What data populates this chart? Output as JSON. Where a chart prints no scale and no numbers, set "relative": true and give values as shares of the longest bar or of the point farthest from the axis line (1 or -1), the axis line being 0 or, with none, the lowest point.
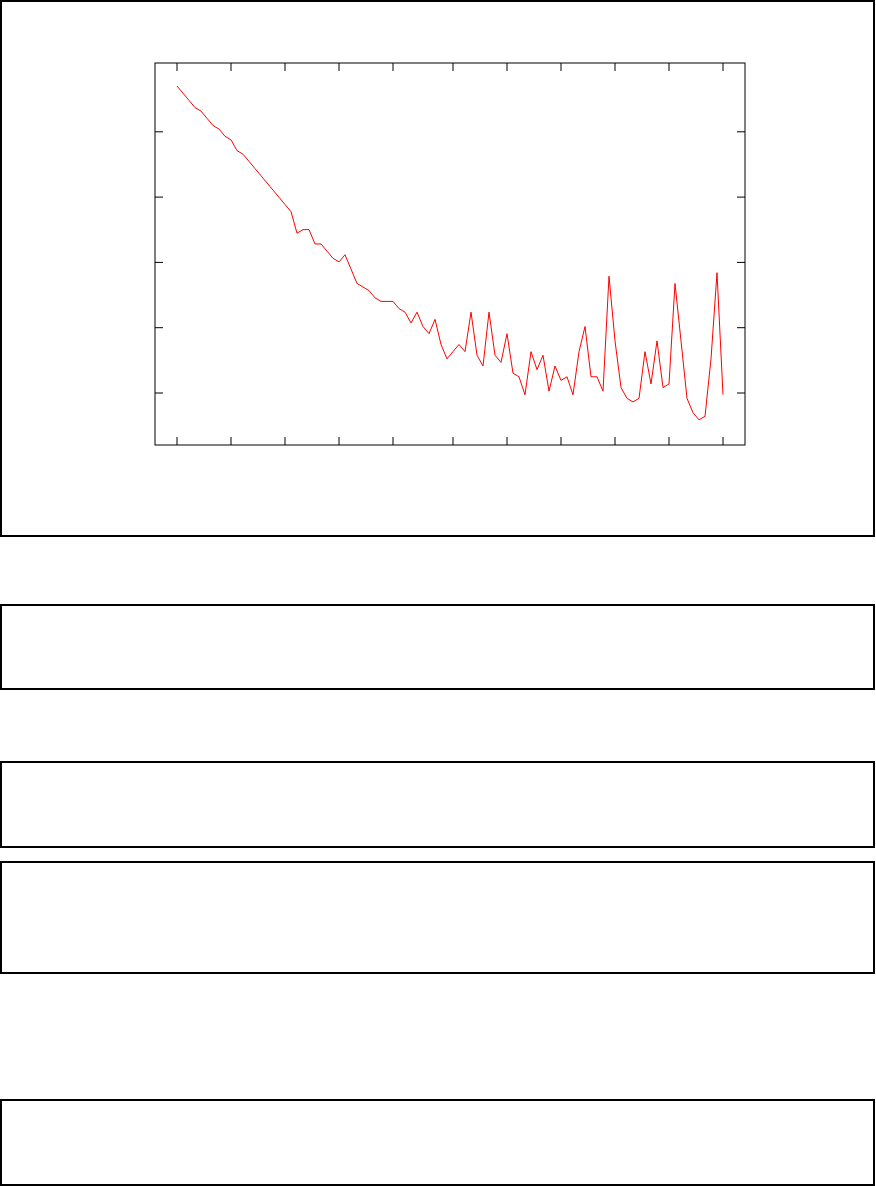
{
  "chart_data": {
    "type": "line",
    "relative": true,
    "marker": "none",
    "line_style": "solid",
    "categories": [
      null,
      null,
      null,
      null,
      null,
      null,
      null,
      null,
      null,
      null,
      null,
      null,
      null,
      null,
      null,
      null,
      null,
      null,
      null,
      null,
      null,
      null,
      null,
      null,
      null,
      null,
      null,
      null,
      null,
      null,
      null,
      null,
      null,
      null,
      null,
      null,
      null,
      null,
      null,
      null,
      null,
      null,
      null,
      null,
      null,
      null,
      null,
      null,
      null,
      null,
      null,
      null,
      null,
      null,
      null,
      null,
      null,
      null,
      null,
      null,
      null,
      null,
      null,
      null,
      null,
      null,
      null,
      null,
      null,
      null,
      null,
      null,
      null,
      null,
      null,
      null,
      null,
      null,
      null,
      null,
      null,
      null,
      null,
      null,
      null,
      null,
      null,
      null,
      null,
      null,
      null,
      null
    ],
    "series": [
      {
        "color": "#ff0000",
        "values": [
          1,
          0.98,
          0.96,
          0.94,
          0.93,
          0.91,
          0.89,
          0.88,
          0.86,
          0.85,
          0.82,
          0.81,
          0.79,
          0.77,
          0.75,
          0.73,
          0.71,
          0.69,
          0.67,
          0.65,
          0.59,
          0.6,
          0.6,
          0.56,
          0.56,
          0.54,
          0.52,
          0.51,
          0.53,
          0.49,
          0.45,
          0.44,
          0.43,
          0.41,
          0.4,
          0.4,
          0.4,
          0.38,
          0.37,
          0.34,
          0.37,
          0.33,
          0.31,
          0.35,
          0.28,
          0.24,
          0.26,
          0.28,
          0.26,
          0.37,
          0.25,
          0.22,
          0.37,
          0.25,
          0.23,
          0.31,
          0.2,
          0.19,
          0.14,
          0.26,
          0.21,
          0.25,
          0.15,
          0.22,
          0.18,
          0.19,
          0.14,
          0.26,
          0.33,
          0.19,
          0.19,
          0.15,
          0.47,
          0.29,
          0.16,
          0.13,
          0.12,
          0.13,
          0.26,
          0.17,
          0.29,
          0.16,
          0.17,
          0.45,
          0.29,
          0.13,
          0.09,
          0.07,
          0.08,
          0.24,
          0.48,
          0.14
        ]
      }
    ]
  }
}
